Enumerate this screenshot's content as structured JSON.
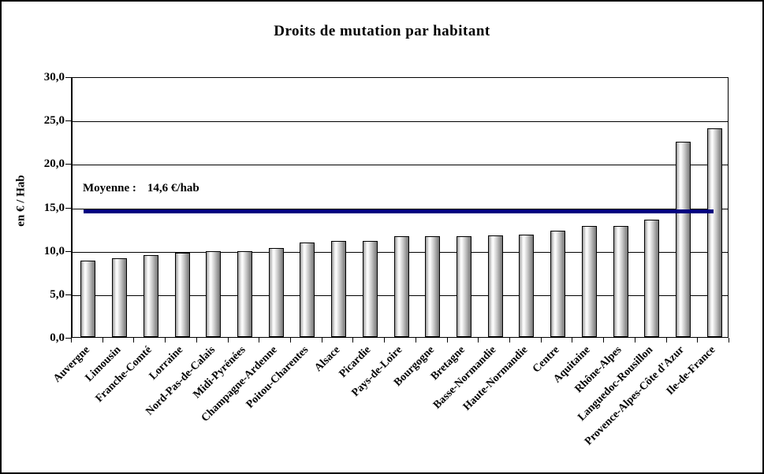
{
  "frame": {
    "background": "#ffffff",
    "border_color": "#000000"
  },
  "chart_data": {
    "type": "bar",
    "title": "Droits de mutation par habitant",
    "xlabel": "",
    "ylabel": "en € / Hab",
    "ylim": [
      0,
      30
    ],
    "y_tick_step": 5,
    "y_tick_labels": [
      "30,0",
      "25,0",
      "20,0",
      "15,0",
      "10,0",
      "5,0",
      "0,0"
    ],
    "grid": true,
    "legend_position": "none",
    "categories": [
      "Auvergne",
      "Limousin",
      "Franche-Comté",
      "Lorraine",
      "Nord-Pas-de-Calais",
      "Midi-Pyrénées",
      "Champagne-Ardenne",
      "Poitou-Charentes",
      "Alsace",
      "Picardie",
      "Pays-de-Loire",
      "Bourgogne",
      "Bretagne",
      "Basse-Normandie",
      "Haute-Normandie",
      "Centre",
      "Aquitaine",
      "Rhône-Alpes",
      "Languedoc-Rousillon",
      "Provence-Alpes-Côte d'Azur",
      "Ile-de-France"
    ],
    "values": [
      8.8,
      9.1,
      9.4,
      9.7,
      9.9,
      9.9,
      10.2,
      10.9,
      11.1,
      11.1,
      11.6,
      11.6,
      11.6,
      11.7,
      11.8,
      12.2,
      12.8,
      12.8,
      13.5,
      22.5,
      24.0
    ],
    "average_line": {
      "value": 14.6,
      "label": "Moyenne :",
      "value_label": "14,6 €/hab",
      "color": "#000080"
    },
    "bar_style": {
      "outline": "#000000",
      "gradient": [
        "#9a9a9a",
        "#ffffff",
        "#757575"
      ]
    },
    "axis_color": "#000000"
  }
}
